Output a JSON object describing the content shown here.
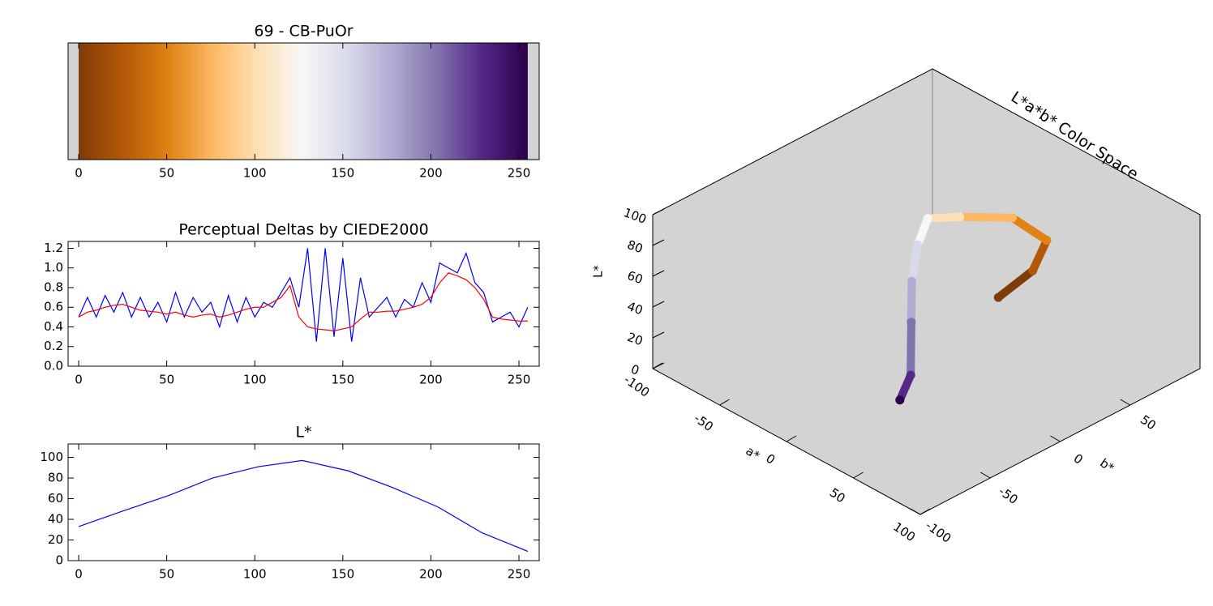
{
  "chart_data": [
    {
      "type": "colorbar",
      "title": "69 - CB-PuOr",
      "x": [
        0,
        25,
        51,
        76,
        102,
        127,
        153,
        178,
        204,
        229,
        255
      ],
      "colors": [
        "#7f3b08",
        "#b35806",
        "#e08214",
        "#fdb863",
        "#fee0b6",
        "#f7f7f7",
        "#d8daeb",
        "#b2abd2",
        "#8073ac",
        "#542788",
        "#2d004b"
      ],
      "xlim": [
        -6,
        261.5
      ],
      "xticks": [
        0,
        50,
        100,
        150,
        200,
        250
      ]
    },
    {
      "type": "line",
      "title": "Perceptual Deltas by CIEDE2000",
      "x": [
        0,
        5,
        10,
        15,
        20,
        25,
        30,
        35,
        40,
        45,
        50,
        55,
        60,
        65,
        70,
        75,
        80,
        85,
        90,
        95,
        100,
        105,
        110,
        115,
        120,
        125,
        130,
        135,
        140,
        145,
        150,
        155,
        160,
        165,
        170,
        175,
        180,
        185,
        190,
        195,
        200,
        205,
        210,
        215,
        220,
        225,
        230,
        235,
        240,
        245,
        250,
        255
      ],
      "series": [
        {
          "color": "#0000ff",
          "values": [
            0.5,
            0.7,
            0.5,
            0.72,
            0.55,
            0.75,
            0.5,
            0.7,
            0.5,
            0.65,
            0.45,
            0.75,
            0.5,
            0.7,
            0.55,
            0.65,
            0.4,
            0.72,
            0.45,
            0.7,
            0.5,
            0.65,
            0.6,
            0.75,
            0.9,
            0.6,
            1.2,
            0.25,
            1.2,
            0.3,
            1.1,
            0.25,
            0.9,
            0.5,
            0.6,
            0.7,
            0.5,
            0.68,
            0.6,
            0.85,
            0.65,
            1.05,
            1.0,
            0.95,
            1.15,
            0.85,
            0.75,
            0.45,
            0.5,
            0.55,
            0.4,
            0.6
          ]
        },
        {
          "color": "#ff0000",
          "values": [
            0.5,
            0.55,
            0.57,
            0.6,
            0.62,
            0.63,
            0.6,
            0.57,
            0.56,
            0.55,
            0.53,
            0.55,
            0.52,
            0.5,
            0.52,
            0.53,
            0.5,
            0.52,
            0.55,
            0.58,
            0.6,
            0.6,
            0.65,
            0.7,
            0.82,
            0.5,
            0.4,
            0.38,
            0.37,
            0.36,
            0.38,
            0.4,
            0.48,
            0.55,
            0.55,
            0.56,
            0.56,
            0.58,
            0.6,
            0.63,
            0.7,
            0.85,
            0.95,
            0.92,
            0.88,
            0.8,
            0.68,
            0.5,
            0.48,
            0.47,
            0.46,
            0.46
          ]
        }
      ],
      "xlim": [
        -6,
        261.5
      ],
      "xticks": [
        0,
        50,
        100,
        150,
        200,
        250
      ],
      "ylim": [
        0,
        1.27
      ],
      "yticks": [
        {
          "value": 0,
          "label": "0.0"
        },
        0.2,
        0.4,
        0.6,
        0.8,
        {
          "value": 1,
          "label": "1.0"
        },
        1.2
      ]
    },
    {
      "type": "line",
      "title": "L*",
      "x": [
        0,
        25,
        51,
        76,
        102,
        127,
        153,
        178,
        204,
        229,
        255
      ],
      "series": [
        {
          "color": "#0000ff",
          "values": [
            33,
            48,
            63,
            80,
            91,
            97,
            87,
            71,
            52,
            27,
            9
          ]
        }
      ],
      "xlim": [
        -6,
        261.5
      ],
      "xticks": [
        0,
        50,
        100,
        150,
        200,
        250
      ],
      "ylim": [
        0,
        113
      ],
      "yticks": [
        0,
        20,
        40,
        60,
        80,
        100
      ]
    },
    {
      "type": "path3d",
      "title": "L*a*b* Color Space",
      "xlabel": "a*",
      "ylabel": "b*",
      "zlabel": "L*",
      "xlim": [
        -100,
        100
      ],
      "ylim": [
        -100,
        100
      ],
      "zlim": [
        0,
        100
      ],
      "xticks": [
        -100,
        -50,
        0,
        50,
        100
      ],
      "yticks": [
        -100,
        -50,
        0,
        50
      ],
      "zticks": [
        0,
        20,
        40,
        60,
        80,
        100
      ],
      "a": [
        12,
        22,
        22,
        12,
        4,
        0,
        4,
        10,
        18,
        28,
        22
      ],
      "b": [
        40,
        55,
        65,
        50,
        20,
        1,
        -10,
        -20,
        -28,
        -38,
        -40
      ],
      "L": [
        33,
        48,
        63,
        80,
        91,
        97,
        87,
        71,
        52,
        27,
        9
      ],
      "colors": [
        "#7f3b08",
        "#b35806",
        "#e08214",
        "#fdb863",
        "#fee0b6",
        "#f7f7f7",
        "#d8daeb",
        "#b2abd2",
        "#8073ac",
        "#542788",
        "#2d004b"
      ]
    }
  ]
}
